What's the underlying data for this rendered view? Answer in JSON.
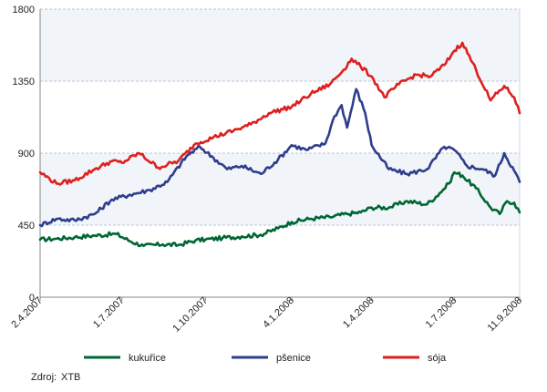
{
  "chart_data": {
    "type": "line",
    "title": "",
    "xlabel": "",
    "ylabel": "",
    "ylim": [
      0,
      1800
    ],
    "yticks": [
      "0",
      "450",
      "900",
      "1350",
      "1800"
    ],
    "grid": true,
    "legend_position": "bottom",
    "x_tick_labels": [
      "2.4.2007",
      "1.7.2007",
      "1.10.2007",
      "4.1.2008",
      "1.4.2008",
      "1.7.2008",
      "11.9.2008"
    ],
    "x_tick_dates": [
      "2007-04-02",
      "2007-07-01",
      "2007-10-01",
      "2008-01-04",
      "2008-04-01",
      "2008-07-01",
      "2008-09-11"
    ],
    "series": [
      {
        "name": "kukuřice",
        "color": "#006633",
        "dates": [
          "2007-04-02",
          "2007-04-20",
          "2007-05-10",
          "2007-06-01",
          "2007-06-25",
          "2007-07-10",
          "2007-07-25",
          "2007-08-15",
          "2007-09-01",
          "2007-09-20",
          "2007-10-01",
          "2007-10-20",
          "2007-11-10",
          "2007-12-01",
          "2007-12-20",
          "2008-01-04",
          "2008-01-25",
          "2008-02-15",
          "2008-03-05",
          "2008-03-20",
          "2008-04-01",
          "2008-04-20",
          "2008-05-10",
          "2008-06-01",
          "2008-06-15",
          "2008-06-25",
          "2008-07-01",
          "2008-07-10",
          "2008-07-25",
          "2008-08-10",
          "2008-08-20",
          "2008-08-28",
          "2008-09-05",
          "2008-09-11"
        ],
        "values": [
          360,
          365,
          375,
          385,
          395,
          350,
          320,
          330,
          325,
          355,
          360,
          370,
          380,
          390,
          430,
          470,
          490,
          500,
          520,
          530,
          560,
          560,
          600,
          580,
          650,
          710,
          780,
          760,
          680,
          560,
          520,
          600,
          590,
          530
        ]
      },
      {
        "name": "pšenice",
        "color": "#2e3e8c",
        "dates": [
          "2007-04-02",
          "2007-04-20",
          "2007-05-10",
          "2007-06-01",
          "2007-06-20",
          "2007-07-10",
          "2007-08-01",
          "2007-08-20",
          "2007-09-10",
          "2007-09-25",
          "2007-10-10",
          "2007-10-25",
          "2007-11-10",
          "2007-12-01",
          "2007-12-20",
          "2008-01-04",
          "2008-01-20",
          "2008-02-10",
          "2008-02-20",
          "2008-02-28",
          "2008-03-05",
          "2008-03-15",
          "2008-03-25",
          "2008-04-01",
          "2008-04-20",
          "2008-05-10",
          "2008-06-01",
          "2008-06-20",
          "2008-07-01",
          "2008-07-15",
          "2008-08-01",
          "2008-08-15",
          "2008-08-25",
          "2008-09-05",
          "2008-09-11"
        ],
        "values": [
          450,
          490,
          480,
          520,
          610,
          640,
          670,
          720,
          880,
          940,
          870,
          800,
          820,
          770,
          860,
          950,
          920,
          960,
          1130,
          1200,
          1060,
          1300,
          1150,
          950,
          800,
          770,
          800,
          940,
          920,
          820,
          800,
          760,
          900,
          790,
          720
        ]
      },
      {
        "name": "sója",
        "color": "#dd2020",
        "dates": [
          "2007-04-02",
          "2007-04-20",
          "2007-05-10",
          "2007-06-01",
          "2007-06-20",
          "2007-07-01",
          "2007-07-20",
          "2007-08-10",
          "2007-09-01",
          "2007-09-20",
          "2007-10-10",
          "2007-11-01",
          "2007-11-20",
          "2007-12-10",
          "2008-01-04",
          "2008-01-25",
          "2008-02-15",
          "2008-03-01",
          "2008-03-10",
          "2008-03-20",
          "2008-04-01",
          "2008-04-15",
          "2008-05-01",
          "2008-05-20",
          "2008-06-05",
          "2008-06-20",
          "2008-07-01",
          "2008-07-10",
          "2008-07-25",
          "2008-08-10",
          "2008-08-25",
          "2008-09-05",
          "2008-09-11"
        ],
        "values": [
          780,
          710,
          730,
          800,
          850,
          840,
          900,
          810,
          850,
          960,
          1000,
          1040,
          1080,
          1150,
          1190,
          1270,
          1330,
          1420,
          1490,
          1440,
          1380,
          1250,
          1330,
          1390,
          1380,
          1450,
          1540,
          1590,
          1420,
          1230,
          1320,
          1250,
          1150
        ]
      }
    ]
  },
  "legend": {
    "items": [
      {
        "label": "kukuřice",
        "color": "#006633"
      },
      {
        "label": "pšenice",
        "color": "#2e3e8c"
      },
      {
        "label": "sója",
        "color": "#dd2020"
      }
    ]
  },
  "source": {
    "label": "Zdroj:",
    "value": "XTB"
  }
}
